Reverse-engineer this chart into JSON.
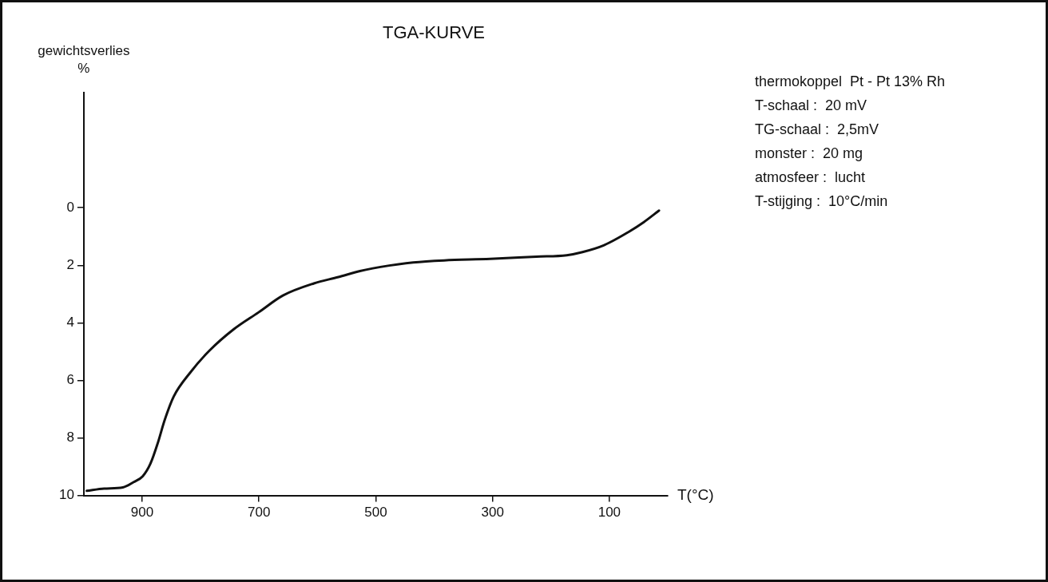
{
  "chart_data": {
    "type": "line",
    "title": "TGA-KURVE",
    "xlabel": "T(°C)",
    "ylabel": "gewichtsverlies\n%",
    "x": [
      995,
      965,
      933,
      915,
      899,
      886,
      873,
      862,
      846,
      817,
      785,
      743,
      701,
      659,
      606,
      564,
      527,
      477,
      436,
      383,
      304,
      225,
      173,
      146,
      109,
      67,
      41,
      15
    ],
    "series": [
      {
        "color": "#111111",
        "values": [
          9.84,
          9.76,
          9.72,
          9.54,
          9.33,
          8.9,
          8.16,
          7.41,
          6.56,
          5.71,
          4.97,
          4.22,
          3.64,
          3.05,
          2.63,
          2.41,
          2.2,
          2.01,
          1.9,
          1.83,
          1.78,
          1.7,
          1.65,
          1.54,
          1.3,
          0.84,
          0.5,
          0.1
        ]
      }
    ],
    "xlim": [
      1000,
      0
    ],
    "xticks": [
      900,
      700,
      500,
      300,
      100
    ],
    "ylim": [
      10,
      -4
    ],
    "yticks": [
      0,
      2,
      4,
      6,
      8,
      10
    ],
    "grid": false,
    "legend": false,
    "marker": "none",
    "line_style": "solid",
    "annotations": [
      "thermokoppel  Pt - Pt 13% Rh",
      "T-schaal :  20 mV",
      "TG-schaal :  2,5mV",
      "monster :  20 mg",
      "atmosfeer :  lucht",
      "T-stijging :  10°C/min"
    ]
  }
}
